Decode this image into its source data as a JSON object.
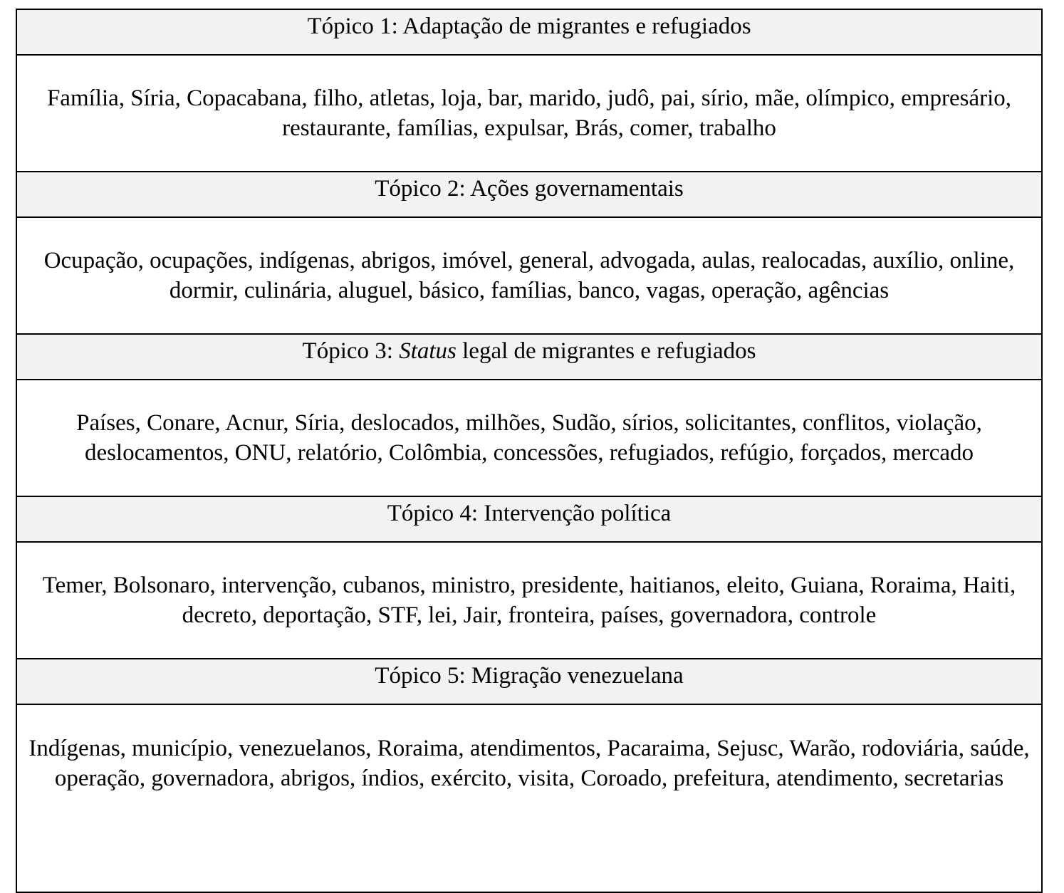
{
  "topics": [
    {
      "title": "Tópico 1: Adaptação de migrantes e refugiados",
      "words": "Família, Síria, Copacabana, filho, atletas, loja, bar, marido, judô, pai, sírio, mãe, olímpico, empresário, restaurante, famílias, expulsar, Brás, comer, trabalho"
    },
    {
      "title": "Tópico 2: Ações governamentais",
      "words": "Ocupação, ocupações, indígenas, abrigos, imóvel, general, advogada, aulas, realocadas, auxílio, online, dormir, culinária, aluguel, básico, famílias, banco, vagas, operação, agências"
    },
    {
      "title_prefix": "Tópico 3: ",
      "title_emphasis": "Status",
      "title_suffix": " legal de migrantes e refugiados",
      "words": "Países, Conare, Acnur, Síria, deslocados, milhões, Sudão, sírios, solicitantes, conflitos, violação, deslocamentos, ONU, relatório, Colômbia, concessões, refugiados, refúgio, forçados, mercado"
    },
    {
      "title": "Tópico 4: Intervenção política",
      "words": "Temer, Bolsonaro, intervenção, cubanos, ministro, presidente, haitianos, eleito, Guiana, Roraima, Haiti, decreto, deportação, STF, lei, Jair, fronteira, países, governadora, controle"
    },
    {
      "title": "Tópico 5: Migração venezuelana",
      "words": "Indígenas, município, venezuelanos, Roraima, atendimentos, Pacaraima, Sejusc, Warão, rodoviária, saúde, operação, governadora, abrigos, índios, exército, visita, Coroado, prefeitura, atendimento, secretarias"
    }
  ],
  "colors": {
    "header_background": "#f2f2f2",
    "border": "#000000",
    "text": "#000000"
  }
}
